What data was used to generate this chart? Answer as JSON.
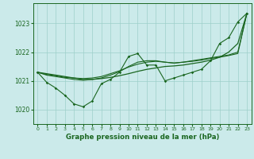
{
  "title": "Graphe pression niveau de la mer (hPa)",
  "background_color": "#cbeaea",
  "grid_color": "#9ecfca",
  "line_color": "#1a6620",
  "x_ticks": [
    0,
    1,
    2,
    3,
    4,
    5,
    6,
    7,
    8,
    9,
    10,
    11,
    12,
    13,
    14,
    15,
    16,
    17,
    18,
    19,
    20,
    21,
    22,
    23
  ],
  "ylim": [
    1019.5,
    1023.7
  ],
  "yticks": [
    1020,
    1021,
    1022,
    1023
  ],
  "xlim": [
    -0.5,
    23.5
  ],
  "line_jagged": [
    1021.3,
    1020.95,
    1020.75,
    1020.5,
    1020.2,
    1020.1,
    1020.3,
    1020.9,
    1021.05,
    1021.3,
    1021.85,
    1021.95,
    1021.55,
    1021.55,
    1021.0,
    1021.1,
    1021.2,
    1021.3,
    1021.4,
    1021.7,
    1022.3,
    1022.5,
    1023.05,
    1023.35
  ],
  "line_smooth_low": [
    1021.3,
    1021.25,
    1021.2,
    1021.15,
    1021.1,
    1021.05,
    1021.05,
    1021.08,
    1021.12,
    1021.18,
    1021.25,
    1021.33,
    1021.4,
    1021.45,
    1021.5,
    1021.52,
    1021.55,
    1021.6,
    1021.65,
    1021.72,
    1021.82,
    1022.0,
    1022.3,
    1023.35
  ],
  "line_upper1": [
    1021.3,
    1021.22,
    1021.18,
    1021.12,
    1021.1,
    1021.08,
    1021.1,
    1021.15,
    1021.25,
    1021.35,
    1021.48,
    1021.58,
    1021.65,
    1021.68,
    1021.65,
    1021.62,
    1021.65,
    1021.7,
    1021.75,
    1021.8,
    1021.85,
    1021.9,
    1022.0,
    1023.35
  ],
  "line_upper2": [
    1021.3,
    1021.2,
    1021.15,
    1021.1,
    1021.05,
    1021.02,
    1021.05,
    1021.1,
    1021.2,
    1021.32,
    1021.5,
    1021.65,
    1021.7,
    1021.7,
    1021.65,
    1021.62,
    1021.65,
    1021.68,
    1021.72,
    1021.78,
    1021.82,
    1021.88,
    1021.95,
    1023.35
  ]
}
